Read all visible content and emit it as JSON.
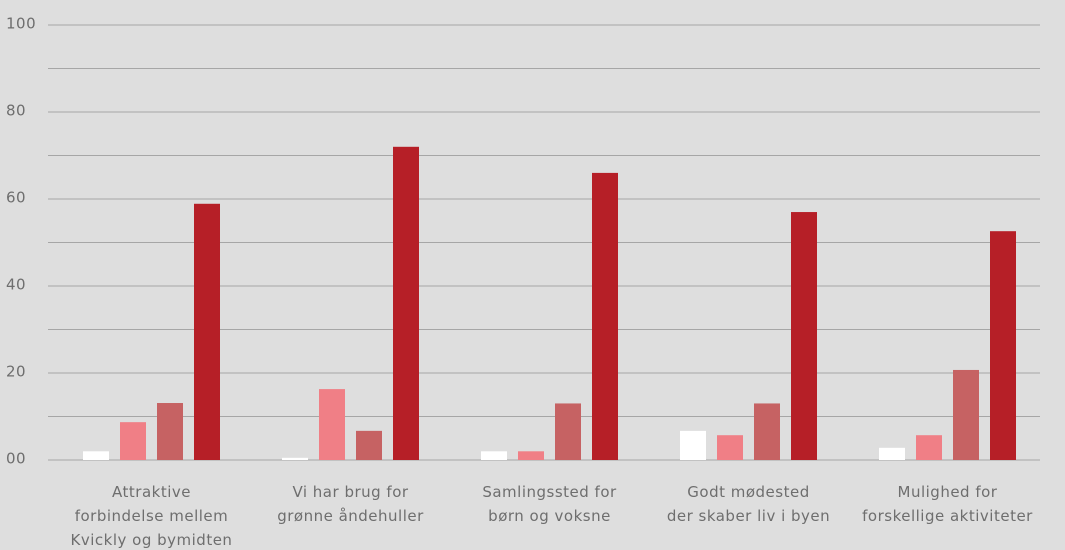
{
  "chart_data": {
    "type": "bar",
    "categories": [
      [
        "Attraktive",
        "forbindelse mellem",
        "Kvickly og bymidten"
      ],
      [
        "Vi har brug for",
        "grønne åndehuller"
      ],
      [
        "Samlingssted for",
        "børn og voksne"
      ],
      [
        "Godt mødested",
        "der skaber liv i byen"
      ],
      [
        "Mulighed for",
        "forskellige aktiviteter"
      ]
    ],
    "series": [
      {
        "color": "#ffffff",
        "values": [
          2,
          0.5,
          2,
          6.7,
          2.8
        ]
      },
      {
        "color": "#f07f86",
        "values": [
          8.7,
          16.3,
          2,
          5.7,
          5.7
        ]
      },
      {
        "color": "#c66263",
        "values": [
          13.1,
          6.7,
          13,
          13,
          20.7
        ]
      },
      {
        "color": "#b61f27",
        "values": [
          58.9,
          72,
          66,
          57,
          52.6
        ]
      }
    ],
    "ylim": [
      0,
      100
    ],
    "yticks": [
      {
        "value": 0,
        "label": "00"
      },
      20,
      40,
      60,
      80,
      100
    ],
    "minor_grid": [
      10,
      30,
      50,
      70,
      90
    ],
    "grid": true
  }
}
